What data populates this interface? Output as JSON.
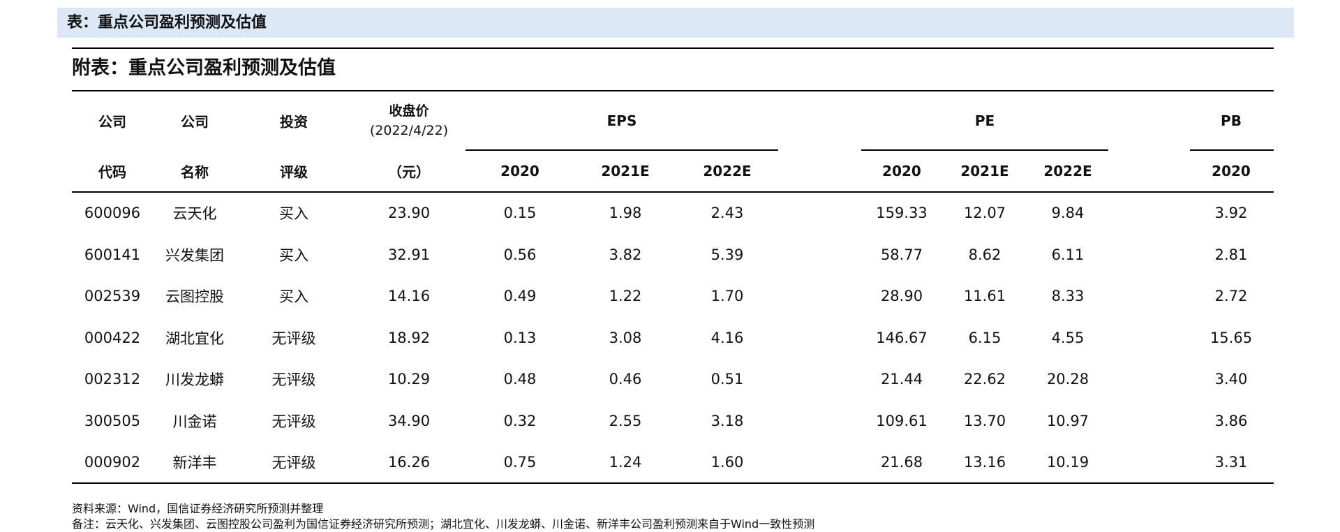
{
  "caption": "表：重点公司盈利预测及估值",
  "subtitle": "附表：重点公司盈利预测及估值",
  "header": {
    "top": [
      "公司",
      "公司",
      "投资",
      "收盘价",
      "EPS",
      "PE",
      "PB"
    ],
    "close_date": "(2022/4/22)",
    "bottom": [
      "代码",
      "名称",
      "评级",
      "（元）",
      "2020",
      "2021E",
      "2022E",
      "2020",
      "2021E",
      "2022E",
      "2020"
    ]
  },
  "rows": [
    [
      "600096",
      "云天化",
      "买入",
      "23.90",
      "0.15",
      "1.98",
      "2.43",
      "159.33",
      "12.07",
      "9.84",
      "3.92"
    ],
    [
      "600141",
      "兴发集团",
      "买入",
      "32.91",
      "0.56",
      "3.82",
      "5.39",
      "58.77",
      "8.62",
      "6.11",
      "2.81"
    ],
    [
      "002539",
      "云图控股",
      "买入",
      "14.16",
      "0.49",
      "1.22",
      "1.70",
      "28.90",
      "11.61",
      "8.33",
      "2.72"
    ],
    [
      "000422",
      "湖北宜化",
      "无评级",
      "18.92",
      "0.13",
      "3.08",
      "4.16",
      "146.67",
      "6.15",
      "4.55",
      "15.65"
    ],
    [
      "002312",
      "川发龙蟒",
      "无评级",
      "10.29",
      "0.48",
      "0.46",
      "0.51",
      "21.44",
      "22.62",
      "20.28",
      "3.40"
    ],
    [
      "300505",
      "川金诺",
      "无评级",
      "34.90",
      "0.32",
      "2.55",
      "3.18",
      "109.61",
      "13.70",
      "10.97",
      "3.86"
    ],
    [
      "000902",
      "新洋丰",
      "无评级",
      "16.26",
      "0.75",
      "1.24",
      "1.60",
      "21.68",
      "13.16",
      "10.19",
      "3.31"
    ]
  ],
  "notes": {
    "source": "资料来源：Wind，国信证券经济研究所预测并整理",
    "remark": "备注：云天化、兴发集团、云图控股公司盈利为国信证券经济研究所预测；湖北宜化、川发龙蟒、川金诺、新洋丰公司盈利预测来自于Wind一致性预测"
  }
}
